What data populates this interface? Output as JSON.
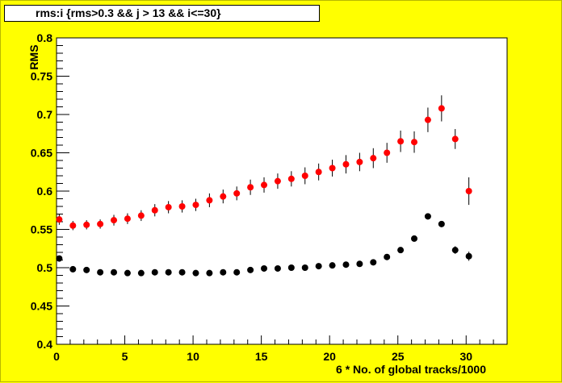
{
  "chart_data": {
    "type": "scatter",
    "title": "rms:i {rms>0.3 && j > 13 && i<=30}",
    "xlabel": "6 * No. of global tracks/1000",
    "ylabel": "RMS",
    "xlim": [
      0,
      33
    ],
    "ylim": [
      0.4,
      0.8
    ],
    "x_ticks": [
      0,
      5,
      10,
      15,
      20,
      25,
      30
    ],
    "y_ticks": [
      0.4,
      0.45,
      0.5,
      0.55,
      0.6,
      0.65,
      0.7,
      0.75,
      0.8
    ],
    "x_tick_labels": [
      "0",
      "5",
      "10",
      "15",
      "20",
      "25",
      "30"
    ],
    "y_tick_labels": [
      "0.4",
      "0.45",
      "0.5",
      "0.55",
      "0.6",
      "0.65",
      "0.7",
      "0.75",
      "0.8"
    ],
    "grid": false,
    "legend": "none",
    "series": [
      {
        "color": "#ff0000",
        "x": [
          0.2,
          1.2,
          2.2,
          3.2,
          4.2,
          5.2,
          6.2,
          7.2,
          8.2,
          9.2,
          10.2,
          11.2,
          12.2,
          13.2,
          14.2,
          15.2,
          16.2,
          17.2,
          18.2,
          19.2,
          20.2,
          21.2,
          22.2,
          23.2,
          24.2,
          25.2,
          26.2,
          27.2,
          28.2,
          29.2,
          30.2
        ],
        "y": [
          0.563,
          0.555,
          0.556,
          0.557,
          0.562,
          0.564,
          0.568,
          0.575,
          0.579,
          0.58,
          0.582,
          0.588,
          0.593,
          0.597,
          0.605,
          0.608,
          0.613,
          0.616,
          0.62,
          0.625,
          0.63,
          0.635,
          0.638,
          0.643,
          0.65,
          0.665,
          0.664,
          0.693,
          0.708,
          0.668,
          0.6
        ],
        "yerr": [
          0.007,
          0.006,
          0.006,
          0.006,
          0.007,
          0.007,
          0.007,
          0.008,
          0.008,
          0.008,
          0.008,
          0.009,
          0.009,
          0.009,
          0.01,
          0.01,
          0.01,
          0.01,
          0.011,
          0.011,
          0.011,
          0.012,
          0.012,
          0.013,
          0.013,
          0.014,
          0.014,
          0.016,
          0.017,
          0.013,
          0.018
        ]
      },
      {
        "color": "#000000",
        "x": [
          0.2,
          1.2,
          2.2,
          3.2,
          4.2,
          5.2,
          6.2,
          7.2,
          8.2,
          9.2,
          10.2,
          11.2,
          12.2,
          13.2,
          14.2,
          15.2,
          16.2,
          17.2,
          18.2,
          19.2,
          20.2,
          21.2,
          22.2,
          23.2,
          24.2,
          25.2,
          26.2,
          27.2,
          28.2,
          29.2,
          30.2
        ],
        "y": [
          0.512,
          0.498,
          0.497,
          0.494,
          0.494,
          0.493,
          0.493,
          0.494,
          0.494,
          0.494,
          0.493,
          0.493,
          0.494,
          0.494,
          0.497,
          0.499,
          0.499,
          0.5,
          0.5,
          0.502,
          0.503,
          0.504,
          0.505,
          0.507,
          0.514,
          0.523,
          0.538,
          0.567,
          0.557,
          0.523,
          0.515
        ],
        "yerr": [
          0.003,
          0.002,
          0.002,
          0.002,
          0.002,
          0.002,
          0.002,
          0.002,
          0.002,
          0.002,
          0.002,
          0.002,
          0.002,
          0.002,
          0.002,
          0.002,
          0.002,
          0.002,
          0.002,
          0.002,
          0.002,
          0.002,
          0.003,
          0.003,
          0.003,
          0.003,
          0.004,
          0.004,
          0.004,
          0.005,
          0.006
        ]
      }
    ]
  }
}
